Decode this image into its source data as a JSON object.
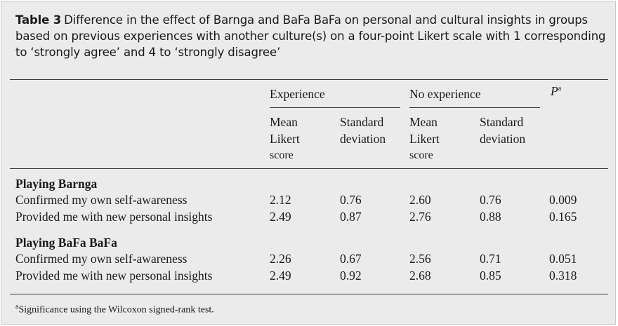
{
  "caption": {
    "label": "Table 3",
    "text": "Difference in the effect of Barnga and BaFa BaFa on personal and cultural insights in groups based on previous experiences with another culture(s) on a four-point Likert scale with 1 corresponding to ‘strongly agree’ and 4 to ‘strongly disagree’"
  },
  "header": {
    "group1": "Experience",
    "group2": "No experience",
    "p_label": "P",
    "p_sup": "a",
    "mean_line1": "Mean",
    "mean_line2": "Likert",
    "mean_line3": "score",
    "sd_line1": "Standard",
    "sd_line2": "deviation"
  },
  "sections": [
    {
      "title": "Playing Barnga",
      "rows": [
        {
          "label": "Confirmed my own self-awareness",
          "exp_mean": "2.12",
          "exp_sd": "0.76",
          "noexp_mean": "2.60",
          "noexp_sd": "0.76",
          "p": "0.009"
        },
        {
          "label": "Provided me with new personal insights",
          "exp_mean": "2.49",
          "exp_sd": "0.87",
          "noexp_mean": "2.76",
          "noexp_sd": "0.88",
          "p": "0.165"
        }
      ]
    },
    {
      "title": "Playing BaFa BaFa",
      "rows": [
        {
          "label": "Confirmed my own self-awareness",
          "exp_mean": "2.26",
          "exp_sd": "0.67",
          "noexp_mean": "2.56",
          "noexp_sd": "0.71",
          "p": "0.051"
        },
        {
          "label": "Provided me with new personal insights",
          "exp_mean": "2.49",
          "exp_sd": "0.92",
          "noexp_mean": "2.68",
          "noexp_sd": "0.85",
          "p": "0.318"
        }
      ]
    }
  ],
  "footnote": {
    "sup": "a",
    "text": "Significance using the Wilcoxon signed-rank test."
  }
}
